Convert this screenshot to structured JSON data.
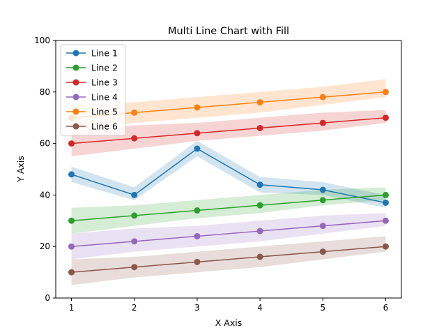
{
  "chart_data": {
    "type": "line",
    "title": "Multi Line Chart with Fill",
    "xlabel": "X Axis",
    "ylabel": "Y Axis",
    "x": [
      1,
      2,
      3,
      4,
      5,
      6
    ],
    "xlim": [
      0.75,
      6.25
    ],
    "ylim": [
      0,
      100
    ],
    "xticks": [
      "1",
      "2",
      "3",
      "4",
      "5",
      "6"
    ],
    "yticks": [
      "0",
      "20",
      "40",
      "60",
      "80",
      "100"
    ],
    "grid": false,
    "legend": "top-left",
    "fill_between": true,
    "series": [
      {
        "name": "Line 1",
        "color": "#1f77b4",
        "values": [
          48,
          40,
          58,
          44,
          42,
          37
        ],
        "lower": [
          45,
          38,
          55,
          41,
          40,
          35
        ],
        "upper": [
          51,
          43,
          61,
          47,
          45,
          40
        ]
      },
      {
        "name": "Line 2",
        "color": "#2ca02c",
        "values": [
          30,
          32,
          34,
          36,
          38,
          40
        ],
        "lower": [
          25,
          28,
          31,
          33,
          36,
          38
        ],
        "upper": [
          35,
          36,
          38,
          40,
          42,
          43
        ]
      },
      {
        "name": "Line 3",
        "color": "#d62728",
        "values": [
          60,
          62,
          64,
          66,
          68,
          70
        ],
        "lower": [
          55,
          58,
          61,
          63,
          65,
          68
        ],
        "upper": [
          65,
          67,
          68,
          70,
          72,
          73
        ]
      },
      {
        "name": "Line 4",
        "color": "#9467bd",
        "values": [
          20,
          22,
          24,
          26,
          28,
          30
        ],
        "lower": [
          15,
          18,
          20,
          22,
          25,
          28
        ],
        "upper": [
          25,
          27,
          28,
          30,
          32,
          33
        ]
      },
      {
        "name": "Line 5",
        "color": "#ff7f0e",
        "values": [
          70,
          72,
          74,
          76,
          78,
          80
        ],
        "lower": [
          65,
          68,
          70,
          72,
          75,
          78
        ],
        "upper": [
          75,
          76,
          78,
          80,
          82,
          85
        ]
      },
      {
        "name": "Line 6",
        "color": "#8c564b",
        "values": [
          10,
          12,
          14,
          16,
          18,
          20
        ],
        "lower": [
          5,
          8,
          10,
          12,
          15,
          18
        ],
        "upper": [
          15,
          16,
          18,
          20,
          22,
          24
        ]
      }
    ]
  }
}
